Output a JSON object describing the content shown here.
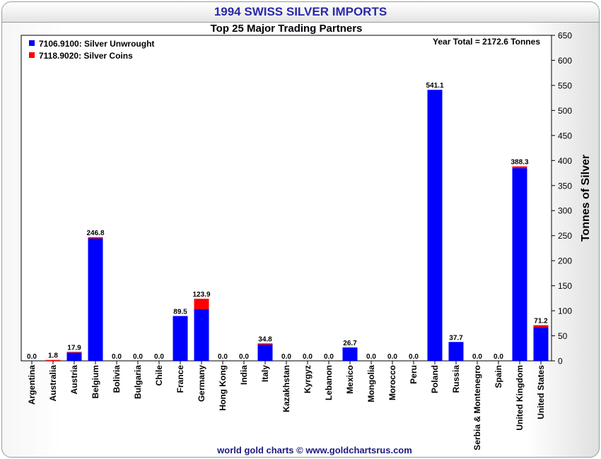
{
  "title": "1994 SWISS SILVER IMPORTS",
  "chart_data": {
    "type": "bar",
    "stacked": true,
    "subtitle": "Top 25 Major Trading Partners",
    "annotation": "Year Total = 2172.6 Tonnes",
    "ylabel": "Tonnes of Silver",
    "xlabel": "",
    "ylim": [
      0,
      650
    ],
    "yticks": [
      0,
      50,
      100,
      150,
      200,
      250,
      300,
      350,
      400,
      450,
      500,
      550,
      600,
      650
    ],
    "legend_position": "top-left",
    "grid": false,
    "categories": [
      "Argentina",
      "Australia",
      "Austria",
      "Belgium",
      "Bolivia",
      "Bulgaria",
      "Chile",
      "France",
      "Germany",
      "Hong Kong",
      "India",
      "Italy",
      "Kazakhstan",
      "Kyrgyz",
      "Lebanon",
      "Mexico",
      "Mongolia",
      "Morocco",
      "Peru",
      "Poland",
      "Russia",
      "Serbia & Montenegro",
      "Spain",
      "United Kingdom",
      "United States"
    ],
    "series": [
      {
        "name": "7106.9100: Silver Unwrought",
        "color": "#0000ff",
        "values": [
          0,
          0,
          16.5,
          244.5,
          0,
          0,
          0,
          89.5,
          103,
          0,
          0,
          32.5,
          0,
          0,
          0,
          26.7,
          0,
          0,
          0,
          541.1,
          37.7,
          0,
          0,
          384.8,
          67.2
        ]
      },
      {
        "name": "7118.9020: Silver Coins",
        "color": "#ff0000",
        "values": [
          0,
          1.8,
          1.4,
          2.3,
          0,
          0,
          0,
          0,
          20.9,
          0,
          0,
          2.3,
          0,
          0,
          0,
          0,
          0,
          0,
          0,
          0,
          0,
          0,
          0,
          3.5,
          4.0
        ]
      }
    ],
    "totals": [
      "0.0",
      "1.8",
      "17.9",
      "246.8",
      "0.0",
      "0.0",
      "0.0",
      "89.5",
      "123.9",
      "0.0",
      "0.0",
      "34.8",
      "0.0",
      "0.0",
      "0.0",
      "26.7",
      "0.0",
      "0.0",
      "0.0",
      "541.1",
      "37.7",
      "0.0",
      "0.0",
      "388.3",
      "71.2"
    ]
  },
  "footer": "world gold charts © www.goldchartsrus.com"
}
